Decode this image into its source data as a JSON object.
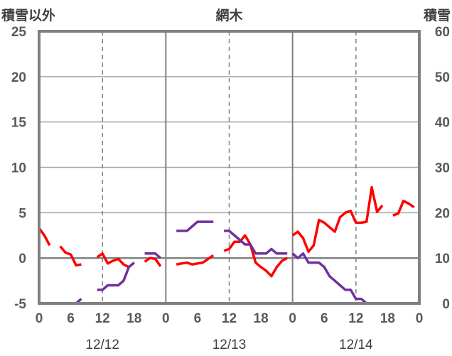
{
  "chart_data": {
    "type": "line",
    "title": "網木",
    "ylabel_left": "積雪以外",
    "ylabel_right": "積雪",
    "ylim_left": [
      -5,
      25
    ],
    "ylim_right": [
      0,
      60
    ],
    "yticks_left": [
      "-5",
      "0",
      "5",
      "10",
      "15",
      "20",
      "25"
    ],
    "yticks_right": [
      "0",
      "10",
      "20",
      "30",
      "40",
      "50",
      "60"
    ],
    "x_hours_range": [
      0,
      72
    ],
    "xtick_labels": [
      "0",
      "6",
      "12",
      "18",
      "0",
      "6",
      "12",
      "18",
      "0",
      "6",
      "12",
      "18",
      "0"
    ],
    "date_labels": [
      "12/12",
      "12/13",
      "12/14"
    ],
    "grid": true,
    "series": [
      {
        "axis": "left",
        "color": "#ff0000",
        "segments": [
          [
            [
              0,
              3.3
            ],
            [
              1,
              2.5
            ],
            [
              2,
              1.4
            ]
          ],
          [
            [
              4,
              1.3
            ],
            [
              5,
              0.6
            ],
            [
              6,
              0.4
            ],
            [
              7,
              -0.8
            ],
            [
              8,
              -0.7
            ]
          ],
          [
            [
              11,
              0.1
            ],
            [
              12,
              0.5
            ],
            [
              13,
              -0.6
            ],
            [
              14,
              -0.3
            ],
            [
              15,
              -0.1
            ],
            [
              16,
              -0.7
            ],
            [
              17,
              -1.0
            ]
          ],
          [
            [
              20,
              -0.4
            ],
            [
              21,
              0.0
            ],
            [
              22,
              -0.1
            ],
            [
              23,
              -0.9
            ]
          ],
          [
            [
              26,
              -0.7
            ],
            [
              27,
              -0.6
            ],
            [
              28,
              -0.5
            ],
            [
              29,
              -0.7
            ],
            [
              30,
              -0.6
            ],
            [
              31,
              -0.5
            ],
            [
              32,
              -0.1
            ],
            [
              33,
              0.3
            ]
          ],
          [
            [
              35,
              0.8
            ],
            [
              36,
              1.0
            ],
            [
              37,
              1.8
            ],
            [
              38,
              1.8
            ],
            [
              39,
              2.5
            ],
            [
              40,
              1.5
            ],
            [
              41,
              -0.5
            ],
            [
              42,
              -1.0
            ],
            [
              43,
              -1.4
            ],
            [
              44,
              -2.0
            ],
            [
              45,
              -1.0
            ],
            [
              46,
              -0.3
            ],
            [
              47,
              0.0
            ]
          ],
          [
            [
              48,
              2.5
            ],
            [
              49,
              2.9
            ],
            [
              50,
              2.2
            ],
            [
              51,
              0.7
            ],
            [
              52,
              1.4
            ],
            [
              53,
              4.2
            ],
            [
              54,
              3.9
            ],
            [
              55,
              3.4
            ],
            [
              56,
              2.9
            ],
            [
              57,
              4.5
            ],
            [
              58,
              5.0
            ],
            [
              59,
              5.2
            ],
            [
              60,
              3.9
            ],
            [
              61,
              3.9
            ],
            [
              62,
              4.0
            ],
            [
              63,
              7.8
            ],
            [
              64,
              5.1
            ],
            [
              65,
              5.8
            ]
          ],
          [
            [
              67,
              4.7
            ],
            [
              68,
              4.9
            ],
            [
              69,
              6.3
            ],
            [
              70,
              6.0
            ],
            [
              71,
              5.6
            ]
          ]
        ]
      },
      {
        "axis": "right",
        "color": "#7030a0",
        "segments": [
          [
            [
              0,
              0
            ],
            [
              2,
              0
            ]
          ],
          [
            [
              4,
              0
            ],
            [
              7,
              0
            ],
            [
              8,
              1
            ]
          ],
          [
            [
              11,
              3
            ],
            [
              12,
              3
            ],
            [
              13,
              4
            ],
            [
              15,
              4
            ],
            [
              16,
              5
            ],
            [
              17,
              8
            ],
            [
              18,
              9
            ]
          ],
          [
            [
              20,
              11
            ],
            [
              22,
              11
            ],
            [
              23,
              10
            ]
          ],
          [
            [
              26,
              16
            ],
            [
              28,
              16
            ],
            [
              29,
              17
            ],
            [
              30,
              18
            ],
            [
              33,
              18
            ]
          ],
          [
            [
              35,
              16
            ],
            [
              36,
              16
            ],
            [
              37,
              15
            ],
            [
              38,
              14
            ],
            [
              39,
              13
            ],
            [
              40,
              13
            ],
            [
              41,
              11
            ],
            [
              43,
              11
            ],
            [
              44,
              12
            ],
            [
              45,
              11
            ],
            [
              47,
              11
            ]
          ],
          [
            [
              48,
              11
            ],
            [
              49,
              10
            ],
            [
              50,
              11
            ],
            [
              51,
              9
            ],
            [
              53,
              9
            ],
            [
              54,
              8
            ],
            [
              55,
              6
            ],
            [
              56,
              5
            ],
            [
              57,
              4
            ],
            [
              58,
              3
            ],
            [
              59,
              3
            ],
            [
              60,
              1
            ],
            [
              61,
              1
            ],
            [
              62,
              0
            ],
            [
              65,
              0
            ]
          ],
          [
            [
              67,
              0
            ],
            [
              70,
              0
            ],
            [
              71,
              0
            ]
          ]
        ]
      }
    ]
  }
}
